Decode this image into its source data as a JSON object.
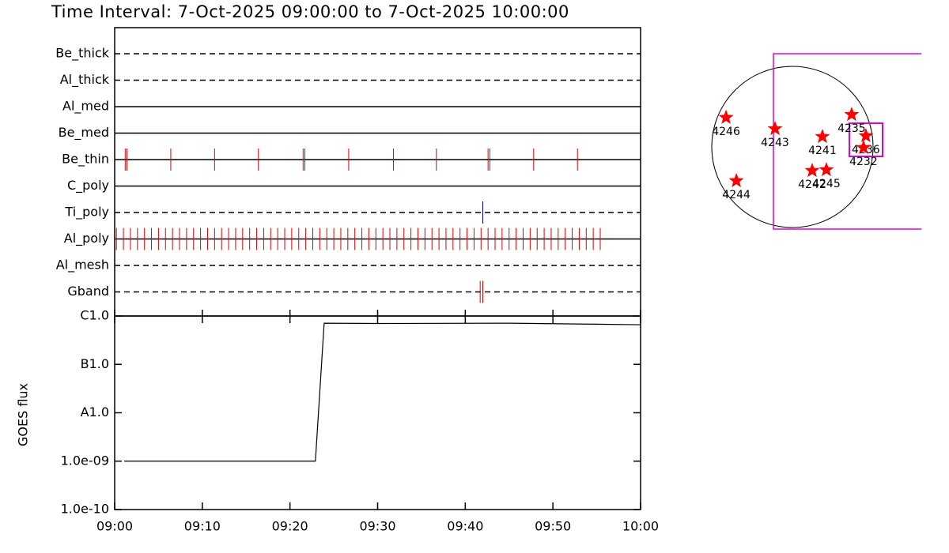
{
  "title": "Time Interval:  7-Oct-2025 09:00:00 to  7-Oct-2025 10:00:00",
  "chart_data": [
    {
      "type": "timeline",
      "xlim": [
        0,
        60
      ],
      "series": [
        {
          "name": "Be_thick",
          "style": "dashed",
          "color": "#e00000",
          "values": []
        },
        {
          "name": "Al_thick",
          "style": "dashed",
          "color": "#e00000",
          "values": []
        },
        {
          "name": "Al_med",
          "style": "solid",
          "color": "#e00000",
          "values": []
        },
        {
          "name": "Be_med",
          "style": "solid",
          "color": "#e00000",
          "values": []
        },
        {
          "name": "Be_thin",
          "style": "solid",
          "color": "#e00000",
          "values": [
            1.2,
            1.4,
            6.4,
            11.4,
            16.4,
            21.5,
            21.7,
            26.7,
            31.8,
            36.7,
            42.6,
            42.8,
            47.8,
            52.8
          ]
        },
        {
          "name": "C_poly",
          "style": "solid",
          "color": "#e00000",
          "values": []
        },
        {
          "name": "Ti_poly",
          "style": "dashed",
          "color": "#0000d0",
          "values": [
            42.0
          ]
        },
        {
          "name": "Al_poly",
          "style": "solid",
          "color": "#e00000",
          "values": [
            0.2,
            1.0,
            1.8,
            2.6,
            3.4,
            4.2,
            5.0,
            5.8,
            6.6,
            7.4,
            8.2,
            9.0,
            9.8,
            10.6,
            11.4,
            12.2,
            13.0,
            13.8,
            14.6,
            15.4,
            16.2,
            17.0,
            17.8,
            18.6,
            19.4,
            20.2,
            21.0,
            21.8,
            22.6,
            23.4,
            24.2,
            25.0,
            25.8,
            26.6,
            27.4,
            28.2,
            29.0,
            29.8,
            30.6,
            31.4,
            32.2,
            33.0,
            33.8,
            34.6,
            35.4,
            36.2,
            37.0,
            37.8,
            38.6,
            39.4,
            40.2,
            41.0,
            41.8,
            42.6,
            43.4,
            44.2,
            45.0,
            45.8,
            46.6,
            47.4,
            48.2,
            49.0,
            49.8,
            50.6,
            51.4,
            52.2,
            53.0,
            53.8,
            54.6,
            55.4
          ]
        },
        {
          "name": "Al_mesh",
          "style": "dashed",
          "color": "#e00000",
          "values": []
        },
        {
          "name": "Gband",
          "style": "dashed",
          "color": "#e00000",
          "values": [
            41.7,
            42.0
          ]
        }
      ]
    },
    {
      "type": "line",
      "ylabel": "GOES flux",
      "log_scale": true,
      "color": "#000000",
      "xlim": [
        0,
        60
      ],
      "xticks": [
        {
          "value": 0,
          "label": "09:00"
        },
        {
          "value": 10,
          "label": "09:10"
        },
        {
          "value": 20,
          "label": "09:20"
        },
        {
          "value": 30,
          "label": "09:30"
        },
        {
          "value": 40,
          "label": "09:40"
        },
        {
          "value": 50,
          "label": "09:50"
        },
        {
          "value": 60,
          "label": "10:00"
        }
      ],
      "ylim": [
        1e-10,
        1e-06
      ],
      "yticks": [
        {
          "value": 1e-10,
          "label": "1.0e-10"
        },
        {
          "value": 1e-09,
          "label": "1.0e-09"
        },
        {
          "value": 1e-08,
          "label": "A1.0"
        },
        {
          "value": 1e-07,
          "label": "B1.0"
        },
        {
          "value": 1e-06,
          "label": "C1.0"
        }
      ],
      "x": [
        1.1,
        22.9,
        23.9,
        30,
        45,
        60
      ],
      "values": [
        1e-09,
        1e-09,
        7.1e-07,
        7e-07,
        7.1e-07,
        6.6e-07
      ]
    },
    {
      "type": "scatter",
      "color": "#ff0000",
      "labels": [
        "4246",
        "4243",
        "4241",
        "4235",
        "4236",
        "4232",
        "4242",
        "4245",
        "4244"
      ],
      "x": [
        -790,
        -207,
        357,
        705,
        874,
        846,
        235,
        404,
        -667
      ],
      "values": [
        350,
        216,
        122,
        385,
        132,
        -9,
        -282,
        -273,
        -404
      ]
    }
  ]
}
